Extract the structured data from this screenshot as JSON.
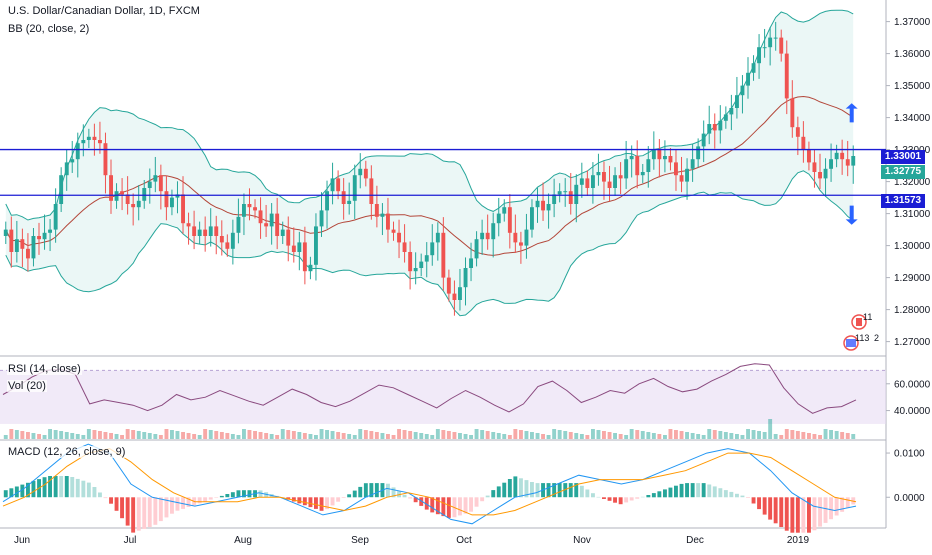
{
  "header": {
    "symbol_title": "U.S. Dollar/Canadian Dollar, 1D, FXCM",
    "bb_label": "BB (20, close, 2)"
  },
  "panes": {
    "rsi_label": "RSI (14, close)",
    "vol_label": "Vol (20)",
    "macd_label": "MACD (12, 26, close, 9)"
  },
  "price_tags": {
    "upper_level": "1.33001",
    "last_price": "1.32775",
    "lower_level": "1.31573"
  },
  "events": {
    "canada_count": "11",
    "us_count": "113",
    "us_extra": "2"
  },
  "colors": {
    "up": "#26a69a",
    "down": "#ef5350",
    "level_line": "#1b1dd4",
    "arrow": "#2962ff",
    "bb_band": "#26a69a",
    "bb_basis": "#b3473a",
    "rsi_line": "#8a4a7f",
    "rsi_band": "#e6d8f3",
    "macd_line": "#2196f3",
    "signal_line": "#ff9800"
  },
  "chart_data": [
    {
      "type": "candlestick",
      "title": "U.S. Dollar/Canadian Dollar, 1D, FXCM",
      "x_ticks": [
        "Jun",
        "Jul",
        "Aug",
        "Sep",
        "Oct",
        "Nov",
        "Dec",
        "2019"
      ],
      "y_ticks": [
        "1.37000",
        "1.36000",
        "1.35000",
        "1.34000",
        "1.33000",
        "1.32000",
        "1.31000",
        "1.30000",
        "1.29000",
        "1.28000",
        "1.27000"
      ],
      "ylim": [
        1.2655,
        1.3755
      ],
      "horizontal_levels": [
        1.33001,
        1.31573
      ],
      "last_price": 1.32775,
      "annotations": [
        "up-arrow",
        "down-arrow"
      ],
      "close_keypoints": [
        1.305,
        1.298,
        1.302,
        1.299,
        1.296,
        1.303,
        1.302,
        1.304,
        1.305,
        1.313,
        1.322,
        1.326,
        1.327,
        1.332,
        1.333,
        1.334,
        1.333,
        1.332,
        1.322,
        1.314,
        1.317,
        1.316,
        1.313,
        1.312,
        1.314,
        1.318,
        1.32,
        1.322,
        1.317,
        1.312,
        1.315,
        1.316,
        1.307,
        1.306,
        1.303,
        1.305,
        1.303,
        1.306,
        1.303,
        1.301,
        1.299,
        1.304,
        1.309,
        1.313,
        1.312,
        1.311,
        1.307,
        1.306,
        1.31,
        1.303,
        1.305,
        1.3,
        1.298,
        1.301,
        1.292,
        1.294,
        1.306,
        1.311,
        1.317,
        1.321,
        1.317,
        1.313,
        1.314,
        1.322,
        1.324,
        1.321,
        1.313,
        1.309,
        1.31,
        1.305,
        1.304,
        1.301,
        1.298,
        1.292,
        1.293,
        1.295,
        1.297,
        1.301,
        1.304,
        1.29,
        1.285,
        1.283,
        1.287,
        1.293,
        1.296,
        1.302,
        1.304,
        1.302,
        1.307,
        1.31,
        1.312,
        1.304,
        1.301,
        1.3,
        1.305,
        1.312,
        1.314,
        1.311,
        1.313,
        1.316,
        1.317,
        1.317,
        1.313,
        1.319,
        1.321,
        1.318,
        1.322,
        1.323,
        1.32,
        1.318,
        1.322,
        1.321,
        1.327,
        1.328,
        1.322,
        1.323,
        1.327,
        1.33,
        1.327,
        1.328,
        1.326,
        1.322,
        1.32,
        1.324,
        1.327,
        1.331,
        1.335,
        1.338,
        1.336,
        1.339,
        1.341,
        1.343,
        1.347,
        1.35,
        1.354,
        1.357,
        1.362,
        1.362,
        1.365,
        1.365,
        1.36,
        1.346,
        1.337,
        1.334,
        1.33,
        1.326,
        1.323,
        1.321,
        1.324,
        1.327,
        1.329,
        1.327,
        1.325,
        1.328
      ]
    },
    {
      "type": "line",
      "title": "RSI (14, close)",
      "y_ticks": [
        "60.0000",
        "40.0000"
      ],
      "band": [
        30,
        70
      ],
      "values_keypoints": [
        52,
        58,
        65,
        70,
        71,
        67,
        45,
        48,
        46,
        44,
        40,
        44,
        52,
        48,
        50,
        55,
        51,
        47,
        44,
        50,
        56,
        52,
        46,
        43,
        47,
        53,
        59,
        57,
        52,
        47,
        42,
        49,
        55,
        50,
        44,
        39,
        45,
        58,
        62,
        55,
        46,
        50,
        55,
        53,
        60,
        64,
        58,
        54,
        56,
        62,
        67,
        73,
        75,
        74,
        57,
        45,
        38,
        42,
        43,
        48
      ]
    },
    {
      "type": "line",
      "title": "MACD (12, 26, close, 9)",
      "y_ticks": [
        "0.0100",
        "0.0000"
      ],
      "series": [
        {
          "name": "MACD",
          "values_keypoints": [
            -0.001,
            0.002,
            0.006,
            0.01,
            0.012,
            0.01,
            0.003,
            0.0,
            -0.001,
            -0.002,
            -0.001,
            0.0,
            0.001,
            0.0,
            -0.002,
            -0.004,
            -0.003,
            0.0,
            0.002,
            0.001,
            -0.002,
            -0.005,
            -0.006,
            -0.003,
            0.0,
            0.001,
            0.003,
            0.005,
            0.004,
            0.003,
            0.004,
            0.006,
            0.008,
            0.01,
            0.011,
            0.01,
            0.006,
            0.001,
            -0.002,
            -0.003,
            -0.002
          ]
        },
        {
          "name": "Signal",
          "values_keypoints": [
            -0.002,
            0.0,
            0.003,
            0.007,
            0.01,
            0.011,
            0.008,
            0.004,
            0.001,
            -0.001,
            -0.001,
            -0.001,
            0.0,
            0.0,
            -0.001,
            -0.002,
            -0.003,
            -0.002,
            0.0,
            0.001,
            0.0,
            -0.002,
            -0.004,
            -0.004,
            -0.003,
            -0.001,
            0.001,
            0.003,
            0.004,
            0.004,
            0.004,
            0.005,
            0.006,
            0.008,
            0.01,
            0.01,
            0.009,
            0.006,
            0.003,
            0.0,
            -0.001
          ]
        }
      ]
    }
  ]
}
